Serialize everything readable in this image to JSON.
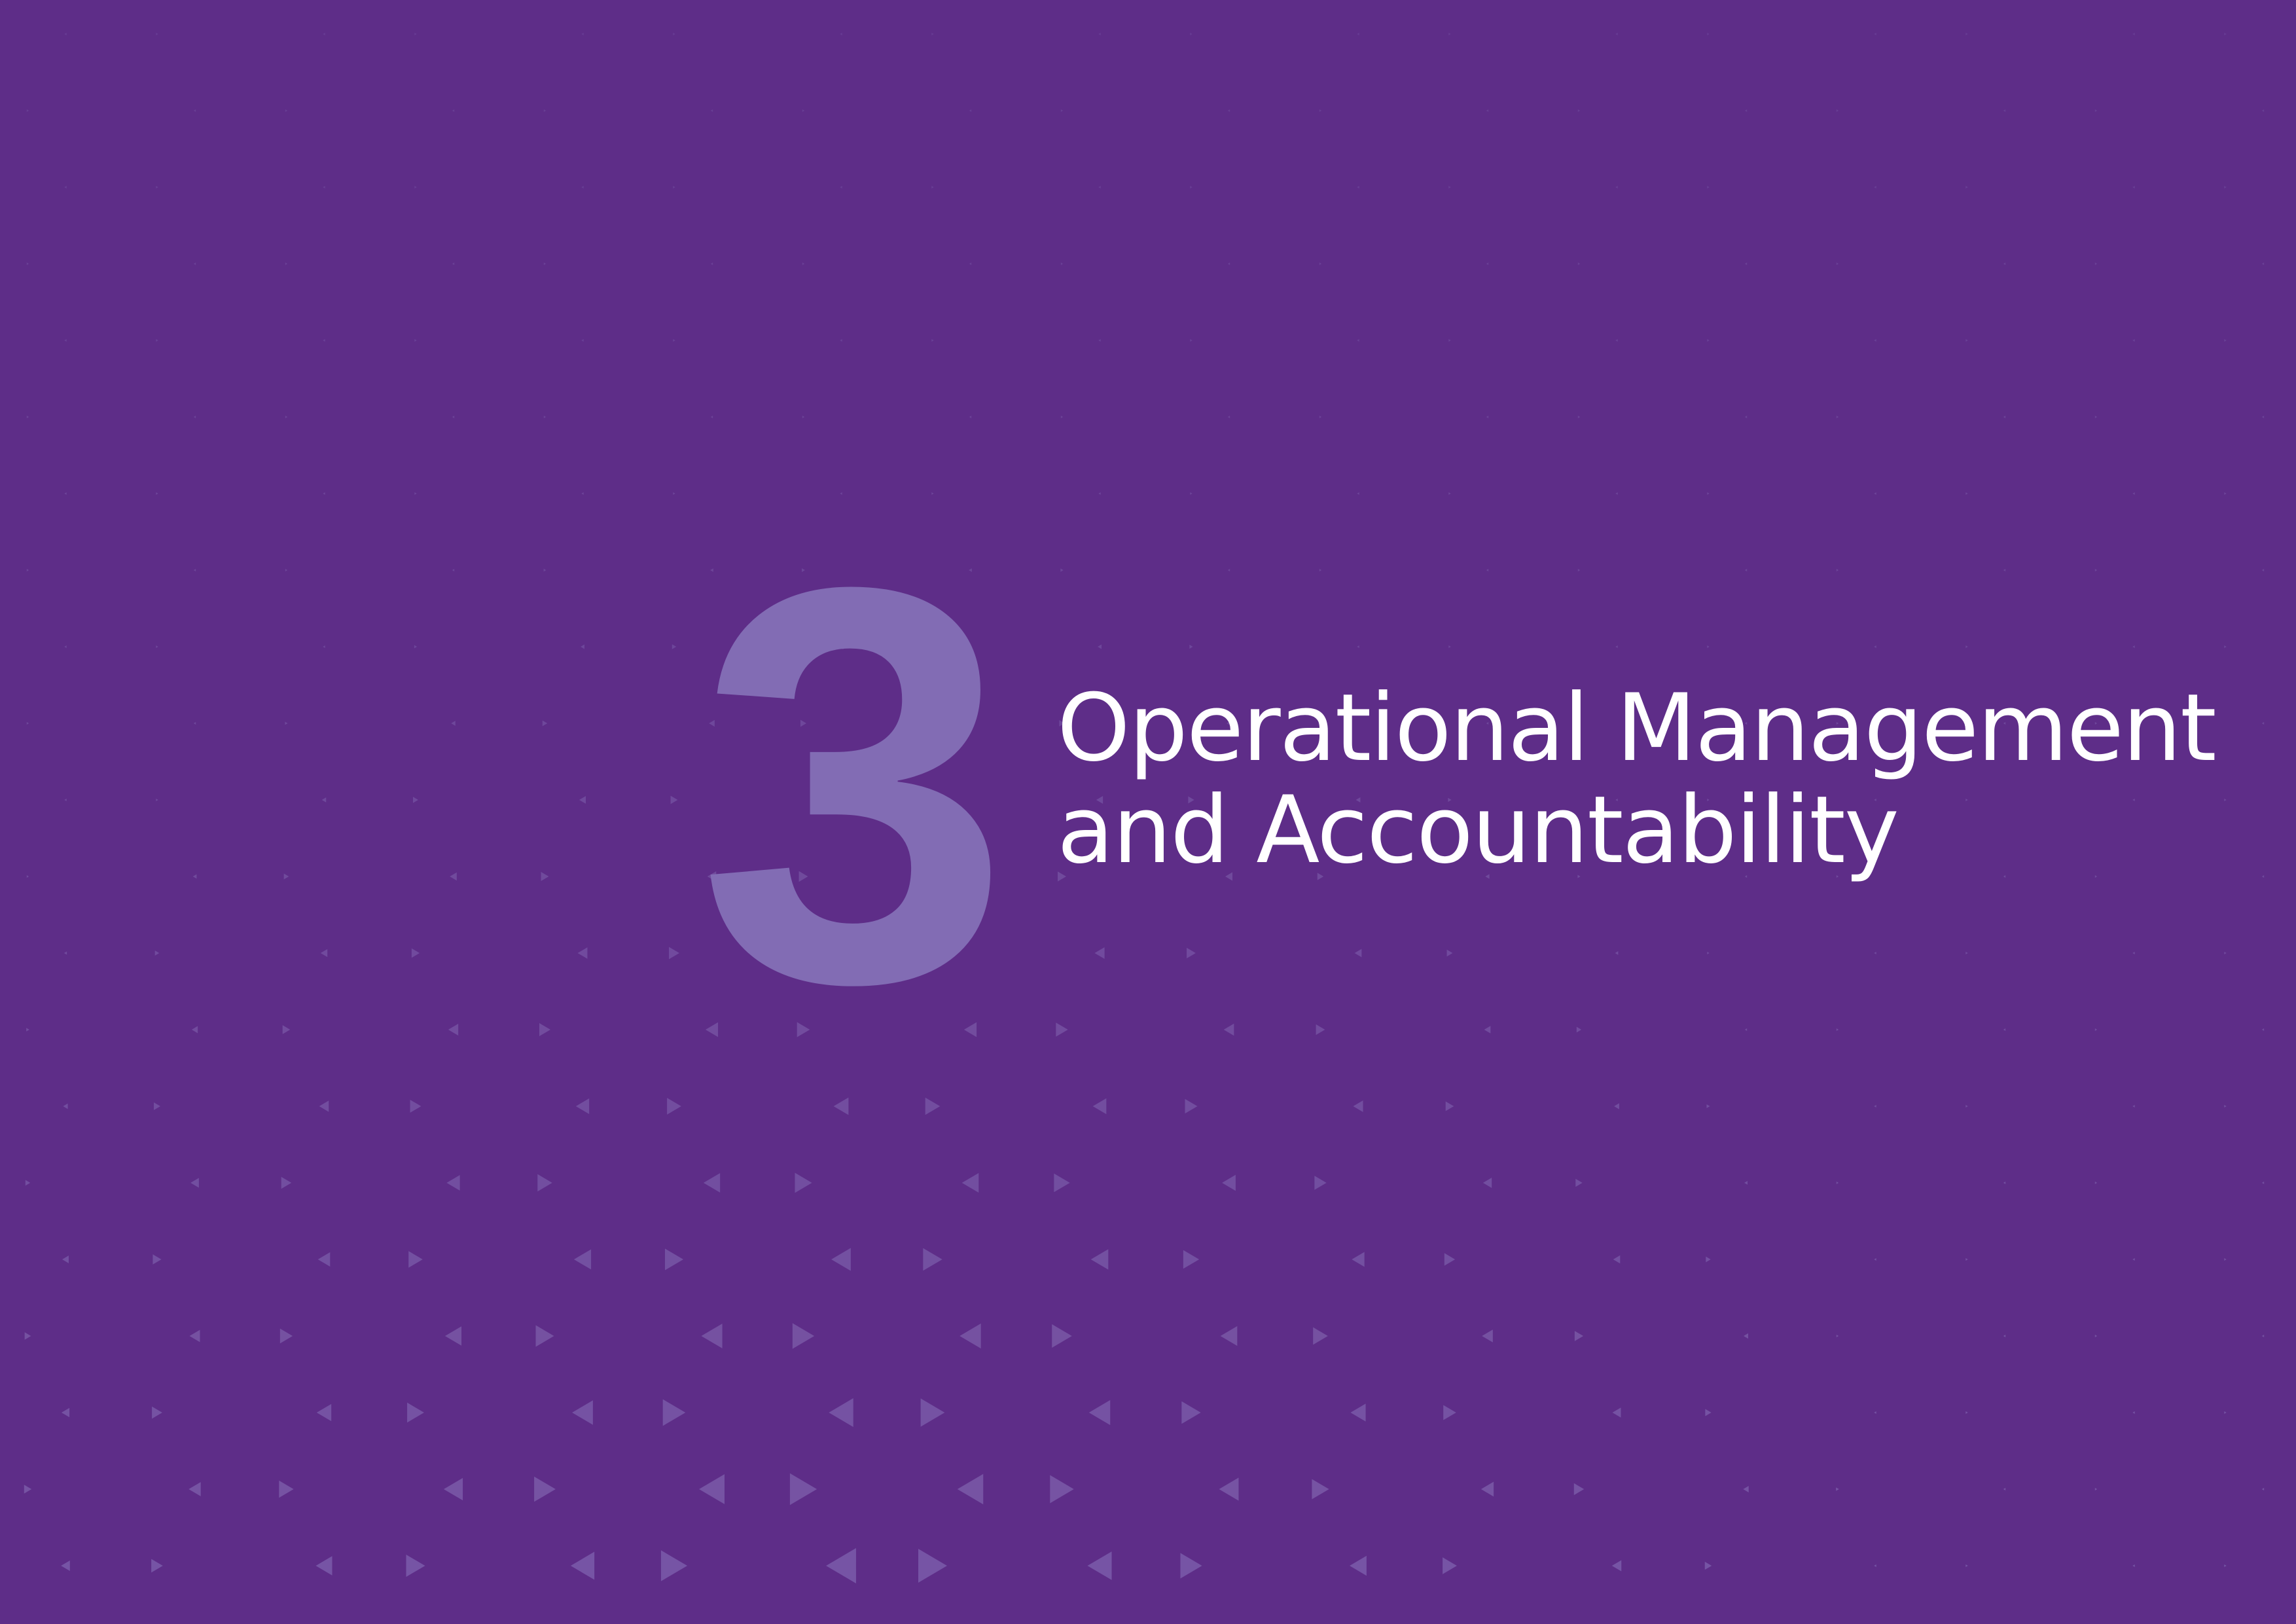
{
  "chapter": {
    "number": "3",
    "title_line_1": "Operational Management",
    "title_line_2": "and Accountability"
  },
  "colors": {
    "background": "#5e2d88",
    "number": "#826cb4",
    "title": "#ffffff",
    "pattern_triangles": "#7a5aa8"
  },
  "decoration": {
    "pattern_icon": "triangle-pattern-icon"
  }
}
